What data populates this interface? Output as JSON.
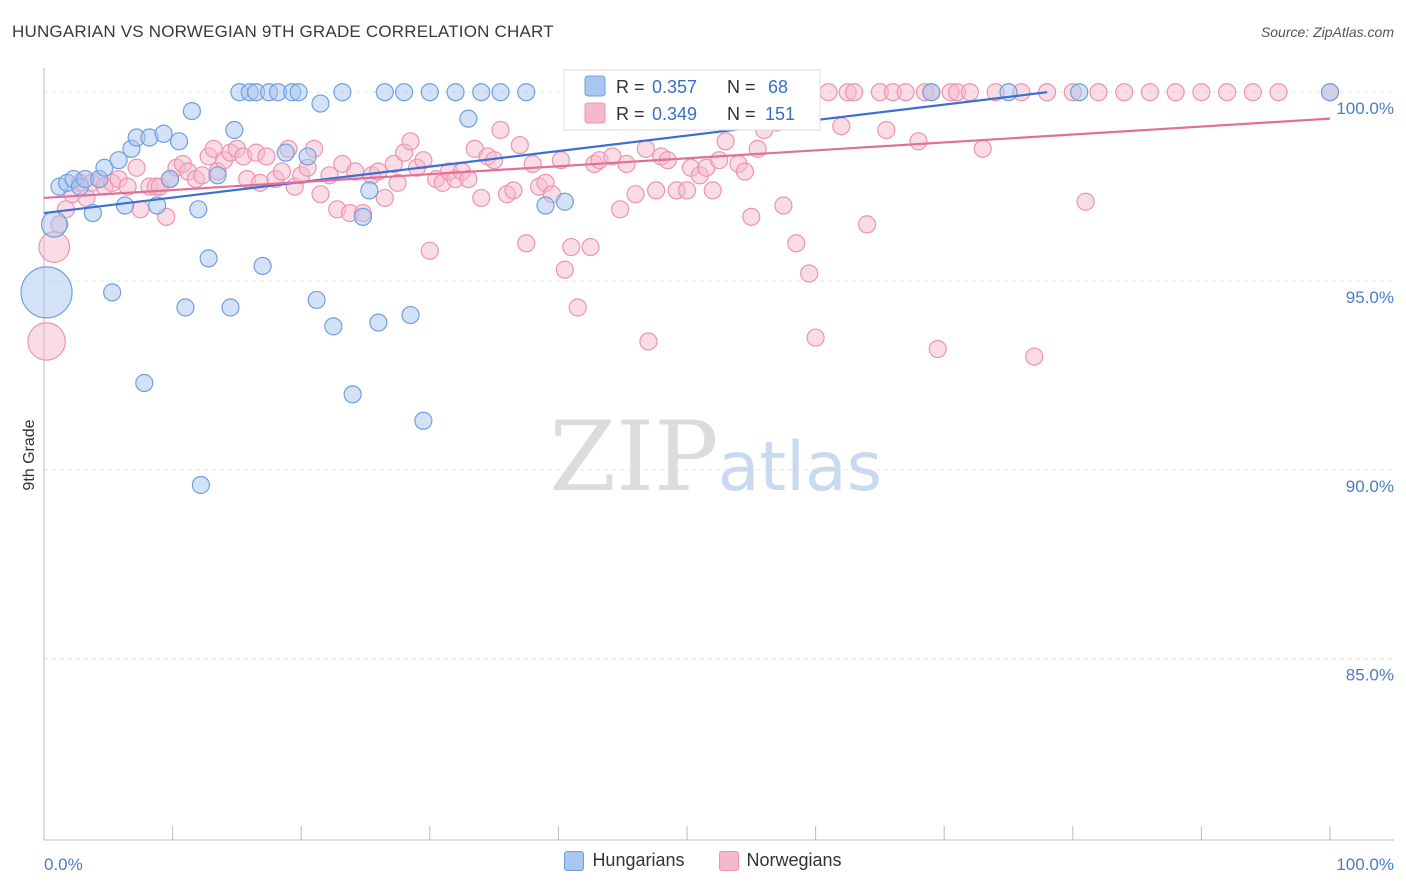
{
  "header": {
    "title": "HUNGARIAN VS NORWEGIAN 9TH GRADE CORRELATION CHART",
    "source": "Source: ZipAtlas.com"
  },
  "watermark": {
    "zip": "ZIP",
    "atlas": "atlas"
  },
  "colors": {
    "hungarians_fill": "#a9c6f0",
    "hungarians_stroke": "#6f9fe0",
    "hungarians_line": "#3a6fd4",
    "norwegians_fill": "#f6b9cc",
    "norwegians_stroke": "#ee93b1",
    "norwegians_line": "#e0709a",
    "axis_text": "#4a7cc7"
  },
  "legend": {
    "hungarians": {
      "r_label": "R =",
      "r_value": "0.357",
      "n_label": "N =",
      "n_value": "68"
    },
    "norwegians": {
      "r_label": "R =",
      "r_value": "0.349",
      "n_label": "N =",
      "n_value": "151"
    }
  },
  "bottom_legend": {
    "hungarians": "Hungarians",
    "norwegians": "Norwegians"
  },
  "chart_data": {
    "type": "scatter",
    "title": "HUNGARIAN VS NORWEGIAN 9TH GRADE CORRELATION CHART",
    "ylabel": "9th Grade",
    "xlabel": "",
    "xlim": [
      0,
      100
    ],
    "ylim": [
      80.2,
      100.8
    ],
    "y_ticks": [
      {
        "value": 100,
        "label": "100.0%"
      },
      {
        "value": 95,
        "label": "95.0%"
      },
      {
        "value": 90,
        "label": "90.0%"
      },
      {
        "value": 85,
        "label": "85.0%"
      }
    ],
    "x_tick_labels": {
      "left": "0.0%",
      "right": "100.0%"
    },
    "grid": true,
    "legend_position": "top-center",
    "series": [
      {
        "name": "Hungarians",
        "r": 0.357,
        "n": 68,
        "trend": {
          "x": [
            0,
            78
          ],
          "y": [
            96.8,
            100.0
          ]
        },
        "points": [
          [
            0.2,
            94.7,
            3
          ],
          [
            0.8,
            96.5,
            1.5
          ],
          [
            1.2,
            97.5,
            1
          ],
          [
            1.8,
            97.6,
            1
          ],
          [
            2.3,
            97.7,
            1
          ],
          [
            2.8,
            97.5,
            1
          ],
          [
            3.2,
            97.7,
            1
          ],
          [
            3.8,
            96.8,
            1
          ],
          [
            4.3,
            97.7,
            1
          ],
          [
            4.7,
            98.0,
            1
          ],
          [
            5.3,
            94.7,
            1
          ],
          [
            5.8,
            98.2,
            1
          ],
          [
            6.3,
            97.0,
            1
          ],
          [
            6.8,
            98.5,
            1
          ],
          [
            7.2,
            98.8,
            1
          ],
          [
            7.8,
            92.3,
            1
          ],
          [
            8.2,
            98.8,
            1
          ],
          [
            8.8,
            97.0,
            1
          ],
          [
            9.3,
            98.9,
            1
          ],
          [
            9.8,
            97.7,
            1
          ],
          [
            10.5,
            98.7,
            1
          ],
          [
            11.0,
            94.3,
            1
          ],
          [
            11.5,
            99.5,
            1
          ],
          [
            12.0,
            96.9,
            1
          ],
          [
            12.2,
            89.6,
            1
          ],
          [
            12.8,
            95.6,
            1
          ],
          [
            13.5,
            97.8,
            1
          ],
          [
            14.5,
            94.3,
            1
          ],
          [
            14.8,
            99.0,
            1
          ],
          [
            15.2,
            100.0,
            1
          ],
          [
            16.0,
            100.0,
            1
          ],
          [
            16.5,
            100.0,
            1
          ],
          [
            17.0,
            95.4,
            1
          ],
          [
            17.5,
            100.0,
            1
          ],
          [
            18.2,
            100.0,
            1
          ],
          [
            18.8,
            98.4,
            1
          ],
          [
            19.3,
            100.0,
            1
          ],
          [
            19.8,
            100.0,
            1
          ],
          [
            20.5,
            98.3,
            1
          ],
          [
            21.5,
            99.7,
            1
          ],
          [
            21.2,
            94.5,
            1
          ],
          [
            22.5,
            93.8,
            1
          ],
          [
            23.2,
            100.0,
            1
          ],
          [
            24.0,
            92.0,
            1
          ],
          [
            24.8,
            96.7,
            1
          ],
          [
            25.3,
            97.4,
            1
          ],
          [
            26.0,
            93.9,
            1
          ],
          [
            26.5,
            100.0,
            1
          ],
          [
            28.0,
            100.0,
            1
          ],
          [
            28.5,
            94.1,
            1
          ],
          [
            29.5,
            91.3,
            1
          ],
          [
            30.0,
            100.0,
            1
          ],
          [
            32.0,
            100.0,
            1
          ],
          [
            33.0,
            99.3,
            1
          ],
          [
            34.0,
            100.0,
            1
          ],
          [
            35.5,
            100.0,
            1
          ],
          [
            37.5,
            100.0,
            1
          ],
          [
            39.0,
            97.0,
            1
          ],
          [
            40.5,
            97.1,
            1
          ],
          [
            43.0,
            100.0,
            1
          ],
          [
            45.0,
            100.0,
            1
          ],
          [
            48.0,
            100.0,
            1
          ],
          [
            53.5,
            100.0,
            1
          ],
          [
            58.0,
            100.0,
            1
          ],
          [
            69.0,
            100.0,
            1
          ],
          [
            75.0,
            100.0,
            1
          ],
          [
            80.5,
            100.0,
            1
          ],
          [
            100.0,
            100.0,
            1
          ]
        ]
      },
      {
        "name": "Norwegians",
        "r": 0.349,
        "n": 151,
        "trend": {
          "x": [
            0,
            100
          ],
          "y": [
            97.2,
            99.3
          ]
        },
        "points": [
          [
            0.2,
            93.4,
            2.2
          ],
          [
            0.8,
            95.9,
            1.8
          ],
          [
            1.2,
            96.5,
            1
          ],
          [
            1.7,
            96.9,
            1
          ],
          [
            2.2,
            97.3,
            1
          ],
          [
            2.8,
            97.6,
            1
          ],
          [
            3.3,
            97.2,
            1
          ],
          [
            3.7,
            97.6,
            1
          ],
          [
            4.3,
            97.7,
            1
          ],
          [
            4.7,
            97.5,
            1
          ],
          [
            5.3,
            97.6,
            1
          ],
          [
            5.8,
            97.7,
            1
          ],
          [
            6.5,
            97.5,
            1
          ],
          [
            7.2,
            98.0,
            1
          ],
          [
            7.5,
            96.9,
            1
          ],
          [
            8.2,
            97.5,
            1
          ],
          [
            8.7,
            97.5,
            1
          ],
          [
            9.0,
            97.5,
            1
          ],
          [
            9.5,
            96.7,
            1
          ],
          [
            9.8,
            97.7,
            1
          ],
          [
            10.3,
            98.0,
            1
          ],
          [
            10.8,
            98.1,
            1
          ],
          [
            11.2,
            97.9,
            1
          ],
          [
            11.8,
            97.7,
            1
          ],
          [
            12.3,
            97.8,
            1
          ],
          [
            12.8,
            98.3,
            1
          ],
          [
            13.2,
            98.5,
            1
          ],
          [
            13.5,
            97.9,
            1
          ],
          [
            14.0,
            98.2,
            1
          ],
          [
            14.5,
            98.4,
            1
          ],
          [
            15.0,
            98.5,
            1
          ],
          [
            15.5,
            98.3,
            1
          ],
          [
            15.8,
            97.7,
            1
          ],
          [
            16.5,
            98.4,
            1
          ],
          [
            16.8,
            97.6,
            1
          ],
          [
            17.3,
            98.3,
            1
          ],
          [
            18.0,
            97.7,
            1
          ],
          [
            18.5,
            97.9,
            1
          ],
          [
            19.0,
            98.5,
            1
          ],
          [
            19.5,
            97.5,
            1
          ],
          [
            20.0,
            97.8,
            1
          ],
          [
            20.5,
            98.0,
            1
          ],
          [
            21.0,
            98.5,
            1
          ],
          [
            21.5,
            97.3,
            1
          ],
          [
            22.2,
            97.8,
            1
          ],
          [
            22.8,
            96.9,
            1
          ],
          [
            23.2,
            98.1,
            1
          ],
          [
            23.8,
            96.8,
            1
          ],
          [
            24.2,
            97.9,
            1
          ],
          [
            24.8,
            96.8,
            1
          ],
          [
            25.5,
            97.8,
            1
          ],
          [
            26.0,
            97.9,
            1
          ],
          [
            26.5,
            97.2,
            1
          ],
          [
            27.2,
            98.1,
            1
          ],
          [
            27.5,
            97.6,
            1
          ],
          [
            28.0,
            98.4,
            1
          ],
          [
            28.5,
            98.7,
            1
          ],
          [
            29.0,
            98.0,
            1
          ],
          [
            29.5,
            98.2,
            1
          ],
          [
            30.0,
            95.8,
            1
          ],
          [
            30.5,
            97.7,
            1
          ],
          [
            31.0,
            97.6,
            1
          ],
          [
            31.5,
            97.9,
            1
          ],
          [
            32.0,
            97.7,
            1
          ],
          [
            32.5,
            97.9,
            1
          ],
          [
            33.0,
            97.7,
            1
          ],
          [
            33.5,
            98.5,
            1
          ],
          [
            34.0,
            97.2,
            1
          ],
          [
            34.5,
            98.3,
            1
          ],
          [
            35.0,
            98.2,
            1
          ],
          [
            35.5,
            99.0,
            1
          ],
          [
            36.0,
            97.3,
            1
          ],
          [
            36.5,
            97.4,
            1
          ],
          [
            37.0,
            98.6,
            1
          ],
          [
            37.5,
            96.0,
            1
          ],
          [
            38.0,
            98.1,
            1
          ],
          [
            38.5,
            97.5,
            1
          ],
          [
            39.0,
            97.6,
            1
          ],
          [
            39.5,
            97.3,
            1
          ],
          [
            40.2,
            98.2,
            1
          ],
          [
            40.5,
            95.3,
            1
          ],
          [
            41.0,
            95.9,
            1
          ],
          [
            41.5,
            94.3,
            1
          ],
          [
            42.5,
            95.9,
            1
          ],
          [
            42.8,
            98.1,
            1
          ],
          [
            43.2,
            98.2,
            1
          ],
          [
            44.2,
            98.3,
            1
          ],
          [
            44.8,
            96.9,
            1
          ],
          [
            45.3,
            98.1,
            1
          ],
          [
            46.0,
            97.3,
            1
          ],
          [
            46.8,
            98.5,
            1
          ],
          [
            47.0,
            93.4,
            1
          ],
          [
            47.6,
            97.4,
            1
          ],
          [
            48.0,
            98.3,
            1
          ],
          [
            48.5,
            98.2,
            1
          ],
          [
            49.2,
            97.4,
            1
          ],
          [
            49.5,
            99.3,
            1
          ],
          [
            50.0,
            97.4,
            1
          ],
          [
            50.3,
            98.0,
            1
          ],
          [
            51.0,
            97.8,
            1
          ],
          [
            51.5,
            98.0,
            1
          ],
          [
            52.0,
            97.4,
            1
          ],
          [
            52.5,
            98.2,
            1
          ],
          [
            53.0,
            98.7,
            1
          ],
          [
            54.0,
            98.1,
            1
          ],
          [
            54.5,
            97.9,
            1
          ],
          [
            55.0,
            96.7,
            1
          ],
          [
            55.5,
            98.5,
            1
          ],
          [
            56.0,
            99.0,
            1
          ],
          [
            57.0,
            99.2,
            1
          ],
          [
            57.5,
            97.0,
            1
          ],
          [
            58.5,
            96.0,
            1
          ],
          [
            59.0,
            100.0,
            1
          ],
          [
            59.5,
            95.2,
            1
          ],
          [
            60.0,
            93.5,
            1
          ],
          [
            61.0,
            100.0,
            1
          ],
          [
            62.0,
            99.1,
            1
          ],
          [
            62.5,
            100.0,
            1
          ],
          [
            63.0,
            100.0,
            1
          ],
          [
            64.0,
            96.5,
            1
          ],
          [
            65.0,
            100.0,
            1
          ],
          [
            65.5,
            99.0,
            1
          ],
          [
            66.0,
            100.0,
            1
          ],
          [
            67.0,
            100.0,
            1
          ],
          [
            68.0,
            98.7,
            1
          ],
          [
            68.5,
            100.0,
            1
          ],
          [
            69.0,
            100.0,
            1
          ],
          [
            69.5,
            93.2,
            1
          ],
          [
            70.5,
            100.0,
            1
          ],
          [
            71.0,
            100.0,
            1
          ],
          [
            72.0,
            100.0,
            1
          ],
          [
            73.0,
            98.5,
            1
          ],
          [
            74.0,
            100.0,
            1
          ],
          [
            76.0,
            100.0,
            1
          ],
          [
            77.0,
            93.0,
            1
          ],
          [
            78.0,
            100.0,
            1
          ],
          [
            80.0,
            100.0,
            1
          ],
          [
            81.0,
            97.1,
            1
          ],
          [
            82.0,
            100.0,
            1
          ],
          [
            84.0,
            100.0,
            1
          ],
          [
            86.0,
            100.0,
            1
          ],
          [
            88.0,
            100.0,
            1
          ],
          [
            90.0,
            100.0,
            1
          ],
          [
            92.0,
            100.0,
            1
          ],
          [
            94.0,
            100.0,
            1
          ],
          [
            96.0,
            100.0,
            1
          ],
          [
            100.0,
            100.0,
            1
          ]
        ]
      }
    ]
  }
}
